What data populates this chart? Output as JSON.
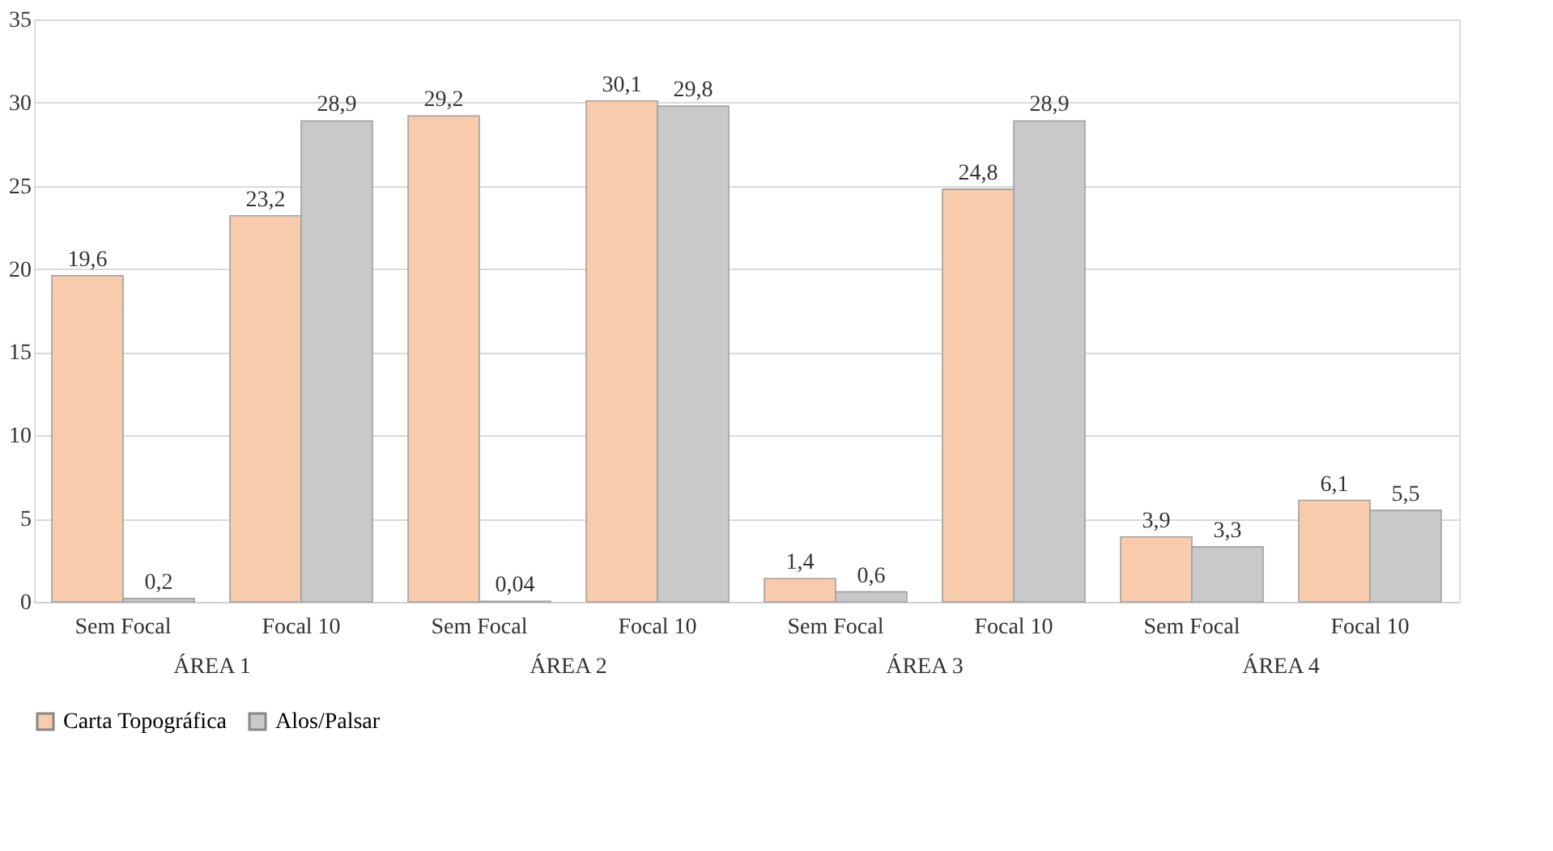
{
  "chart_data": {
    "type": "bar",
    "categories": [
      "Sem Focal",
      "Focal 10",
      "Sem Focal",
      "Focal 10",
      "Sem Focal",
      "Focal 10",
      "Sem Focal",
      "Focal 10"
    ],
    "series": [
      {
        "name": "Carta Topográfica",
        "color": "#f8cbad",
        "values": [
          19.6,
          23.2,
          29.2,
          30.1,
          1.4,
          24.8,
          3.9,
          6.1
        ],
        "value_labels": [
          "19,6",
          "23,2",
          "29,2",
          "30,1",
          "1,4",
          "24,8",
          "3,9",
          "6,1"
        ]
      },
      {
        "name": "Alos/Palsar",
        "color": "#c9c9c9",
        "values": [
          0.2,
          28.9,
          0.04,
          29.8,
          0.6,
          28.9,
          3.3,
          5.5
        ],
        "value_labels": [
          "0,2",
          "28,9",
          "0,04",
          "29,8",
          "0,6",
          "28,9",
          "3,3",
          "5,5"
        ]
      }
    ],
    "annotations": [
      "ÁREA 1",
      "ÁREA 2",
      "ÁREA 3",
      "ÁREA 4"
    ],
    "ylim": [
      0,
      35
    ],
    "yticks": [
      0,
      5,
      10,
      15,
      20,
      25,
      30,
      35
    ],
    "grid": "y",
    "legend": "bottom"
  }
}
